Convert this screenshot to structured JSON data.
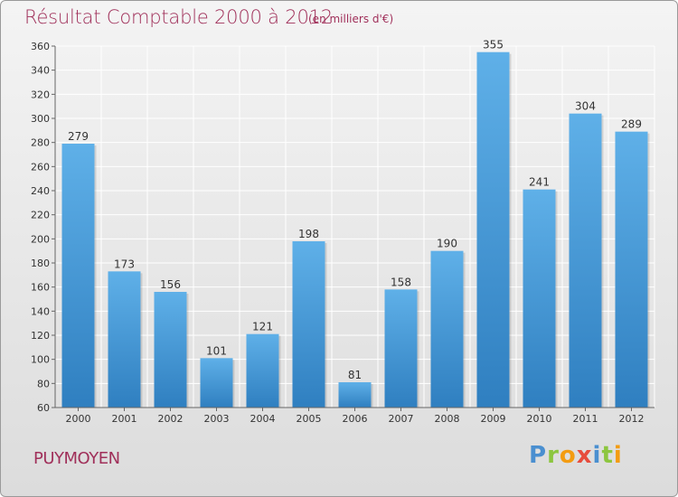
{
  "title": "Résultat Comptable 2000 à 2012",
  "subtitle": "(en milliers d'€)",
  "commune": "PUYMOYEN",
  "logo": {
    "text": "Proxiti",
    "letters": [
      {
        "char": "P",
        "color": "#4a8fd0"
      },
      {
        "char": "r",
        "color": "#8cc63f"
      },
      {
        "char": "o",
        "color": "#f39c12"
      },
      {
        "char": "x",
        "color": "#e74c3c"
      },
      {
        "char": "i",
        "color": "#4a8fd0"
      },
      {
        "char": "t",
        "color": "#8cc63f"
      },
      {
        "char": "i",
        "color": "#f39c12"
      }
    ]
  },
  "colors": {
    "bar_light": "#5fb0e8",
    "bar_dark": "#2f7fc0",
    "grid": "#ffffff",
    "title": "#a0305a"
  },
  "chart_data": {
    "type": "bar",
    "title": "Résultat Comptable 2000 à 2012",
    "xlabel": "",
    "ylabel": "",
    "categories": [
      "2000",
      "2001",
      "2002",
      "2003",
      "2004",
      "2005",
      "2006",
      "2007",
      "2008",
      "2009",
      "2010",
      "2011",
      "2012"
    ],
    "values": [
      279,
      173,
      156,
      101,
      121,
      198,
      81,
      158,
      190,
      355,
      241,
      304,
      289
    ],
    "ylim": [
      60,
      360
    ],
    "yticks": [
      60,
      80,
      100,
      120,
      140,
      160,
      180,
      200,
      220,
      240,
      260,
      280,
      300,
      320,
      340,
      360
    ],
    "grid": true
  }
}
